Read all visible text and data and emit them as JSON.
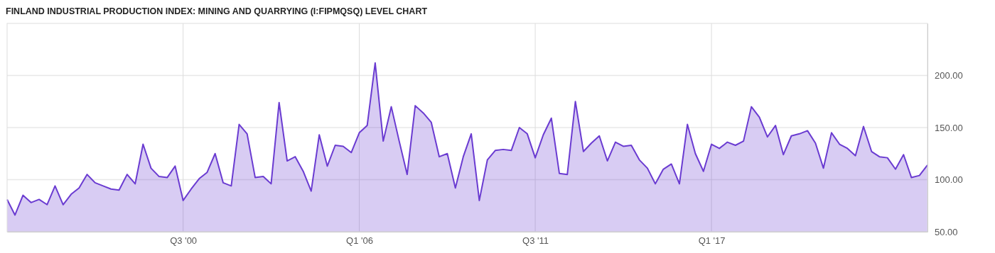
{
  "chart_data": {
    "type": "area",
    "title": "FINLAND INDUSTRIAL PRODUCTION INDEX: MINING AND QUARRYING (I:FIPMQSQ) LEVEL CHART",
    "x": [
      "1995-01",
      "1995-04",
      "1995-07",
      "1995-10",
      "1996-01",
      "1996-04",
      "1996-07",
      "1996-10",
      "1997-01",
      "1997-04",
      "1997-07",
      "1997-10",
      "1998-01",
      "1998-04",
      "1998-07",
      "1998-10",
      "1999-01",
      "1999-04",
      "1999-07",
      "1999-10",
      "2000-01",
      "2000-04",
      "2000-07",
      "2000-10",
      "2001-01",
      "2001-04",
      "2001-07",
      "2001-10",
      "2002-01",
      "2002-04",
      "2002-07",
      "2002-10",
      "2003-01",
      "2003-04",
      "2003-07",
      "2003-10",
      "2004-01",
      "2004-04",
      "2004-07",
      "2004-10",
      "2005-01",
      "2005-04",
      "2005-07",
      "2005-10",
      "2006-01",
      "2006-04",
      "2006-07",
      "2006-10",
      "2007-01",
      "2007-04",
      "2007-07",
      "2007-10",
      "2008-01",
      "2008-04",
      "2008-07",
      "2008-10",
      "2009-01",
      "2009-04",
      "2009-07",
      "2009-10",
      "2010-01",
      "2010-04",
      "2010-07",
      "2010-10",
      "2011-01",
      "2011-04",
      "2011-07",
      "2011-10",
      "2012-01",
      "2012-04",
      "2012-07",
      "2012-10",
      "2013-01",
      "2013-04",
      "2013-07",
      "2013-10",
      "2014-01",
      "2014-04",
      "2014-07",
      "2014-10",
      "2015-01",
      "2015-04",
      "2015-07",
      "2015-10",
      "2016-01",
      "2016-04",
      "2016-07",
      "2016-10",
      "2017-01",
      "2017-04",
      "2017-07",
      "2017-10",
      "2018-01",
      "2018-04",
      "2018-07",
      "2018-10",
      "2019-01",
      "2019-04",
      "2019-07",
      "2019-10",
      "2020-01",
      "2020-04",
      "2020-07",
      "2020-10",
      "2021-01",
      "2021-04",
      "2021-07",
      "2021-10",
      "2022-01",
      "2022-04",
      "2022-07",
      "2022-10",
      "2023-01",
      "2023-04",
      "2023-07",
      "2023-10"
    ],
    "series": [
      {
        "color": "#6a3bd1",
        "values": [
          81,
          66,
          85,
          78,
          81,
          76,
          94,
          76,
          86,
          92,
          105,
          97,
          94,
          91,
          90,
          105,
          96,
          134,
          111,
          103,
          102,
          113,
          80,
          91,
          101,
          107,
          125,
          97,
          94,
          153,
          144,
          102,
          103,
          96,
          174,
          118,
          122,
          108,
          89,
          143,
          113,
          133,
          132,
          126,
          145,
          152,
          212,
          137,
          170,
          137,
          105,
          171,
          164,
          155,
          122,
          125,
          92,
          122,
          144,
          80,
          119,
          128,
          129,
          128,
          150,
          144,
          121,
          143,
          159,
          106,
          105,
          175,
          127,
          135,
          142,
          118,
          136,
          132,
          133,
          119,
          111,
          96,
          110,
          115,
          96,
          153,
          125,
          108,
          134,
          130,
          136,
          133,
          137,
          170,
          160,
          141,
          152,
          124,
          142,
          144,
          147,
          135,
          111,
          145,
          134,
          130,
          123,
          151,
          127,
          122,
          121,
          110,
          124,
          102,
          104,
          114
        ]
      }
    ],
    "xlim": [
      "1995-01",
      "2023-10"
    ],
    "xticks": [
      {
        "value": "2000-07",
        "label": "Q3 '00"
      },
      {
        "value": "2006-01",
        "label": "Q1 '06"
      },
      {
        "value": "2011-07",
        "label": "Q3 '11"
      },
      {
        "value": "2017-01",
        "label": "Q1 '17"
      }
    ],
    "ylim": [
      50,
      250
    ],
    "yticks": [
      {
        "value": 50,
        "label": "50.00"
      },
      {
        "value": 100,
        "label": "100.00"
      },
      {
        "value": 150,
        "label": "150.00"
      },
      {
        "value": 200,
        "label": "200.00"
      }
    ],
    "grid": true
  }
}
